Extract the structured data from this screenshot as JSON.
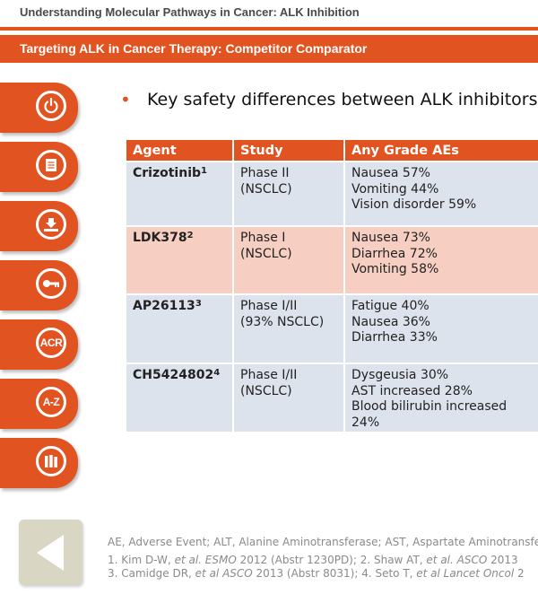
{
  "header": {
    "section_title": "Understanding Molecular Pathways in Cancer: ALK Inhibition",
    "slide_title": "Targeting ALK in Cancer Therapy: Competitor Comparator"
  },
  "sidebar": {
    "buttons": [
      {
        "icon": "power-icon"
      },
      {
        "icon": "document-icon"
      },
      {
        "icon": "download-icon"
      },
      {
        "icon": "key-icon"
      },
      {
        "icon": "acr-icon",
        "label": "ACR"
      },
      {
        "icon": "a-z-icon",
        "label": "A-Z"
      },
      {
        "icon": "library-icon"
      }
    ]
  },
  "bullet": "Key safety differences between ALK inhibitors",
  "table": {
    "headers": [
      "Agent",
      "Study",
      "Any Grade AEs"
    ],
    "rows": [
      {
        "agent": "Crizotinib",
        "ref": "1",
        "study": [
          "Phase II",
          "(NSCLC)"
        ],
        "aes": [
          "Nausea  57%",
          "Vomiting  44%",
          "Vision disorder  59%"
        ]
      },
      {
        "agent": "LDK378",
        "ref": "2",
        "study": [
          "Phase I",
          "(NSCLC)"
        ],
        "aes": [
          "Nausea  73%",
          "Diarrhea  72%",
          "Vomiting  58%"
        ]
      },
      {
        "agent": "AP26113",
        "ref": "3",
        "study": [
          "Phase I/II",
          "(93% NSCLC)"
        ],
        "aes": [
          "Fatigue  40%",
          "Nausea  36%",
          "Diarrhea  33%"
        ]
      },
      {
        "agent": "CH5424802",
        "ref": "4",
        "study": [
          "Phase I/II",
          "(NSCLC)"
        ],
        "aes": [
          "Dysgeusia  30%",
          "AST increased  28%",
          "Blood bilirubin  increased",
          "24%"
        ]
      }
    ]
  },
  "footnotes": {
    "abbrev": "AE, Adverse Event; ALT, Alanine Aminotransferase; AST, Aspartate Aminotransferase",
    "ref_line1_a": "1. Kim D-W, ",
    "ref_line1_b": "et al. ESMO",
    "ref_line1_c": " 2012 (Abstr 1230PD); 2. Shaw AT, ",
    "ref_line1_d": "et al. ASCO",
    "ref_line1_e": " 2013",
    "ref_line2_a": "3. Camidge DR, ",
    "ref_line2_b": "et al ASCO",
    "ref_line2_c": " 2013 (Abstr 8031); 4. Seto T, ",
    "ref_line2_d": "et al Lancet Oncol",
    "ref_line2_e": " 2"
  },
  "colors": {
    "accent": "#e15422",
    "row_blue": "#dde3ec",
    "row_pink": "#f6cfc2",
    "back_button": "#d9d6c4"
  }
}
